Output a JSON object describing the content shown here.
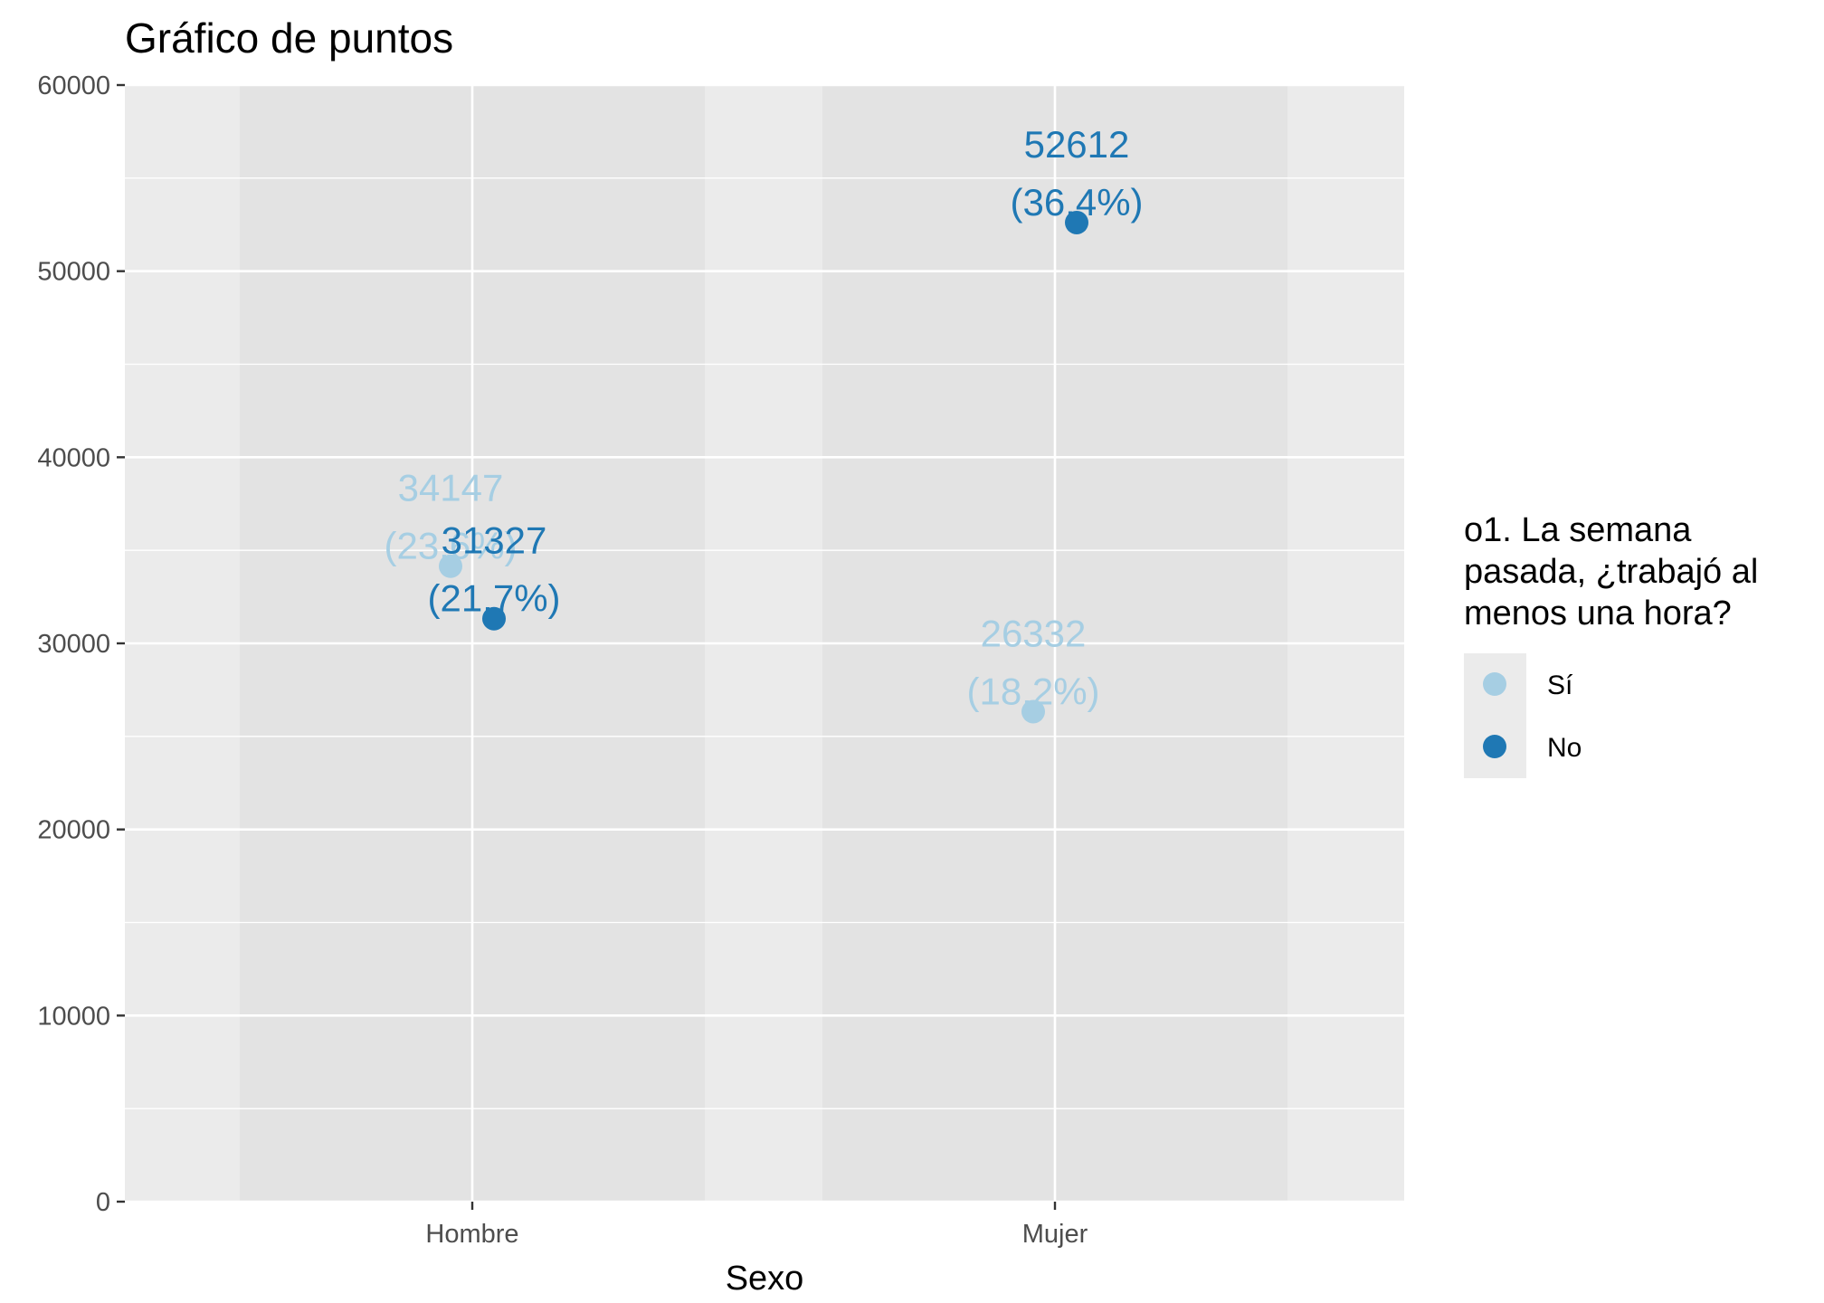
{
  "chart_data": {
    "type": "scatter",
    "title": "Gráfico de puntos",
    "xlabel": "Sexo",
    "ylabel": "",
    "categories": [
      "Hombre",
      "Mujer"
    ],
    "ylim": [
      0,
      60000
    ],
    "yticks": [
      0,
      10000,
      20000,
      30000,
      40000,
      50000,
      60000
    ],
    "grid": true,
    "legend": {
      "title_lines": [
        "o1. La semana",
        "pasada, ¿trabajó al",
        "menos una hora?"
      ],
      "position": "right"
    },
    "series": [
      {
        "name": "Sí",
        "color": "#a6cee3",
        "values": [
          34147,
          26332
        ],
        "labels": [
          [
            "34147",
            "(23.6%)"
          ],
          [
            "26332",
            "(18.2%)"
          ]
        ]
      },
      {
        "name": "No",
        "color": "#1f78b4",
        "values": [
          31327,
          52612
        ],
        "labels": [
          [
            "31327",
            "(21.7%)"
          ],
          [
            "52612",
            "(36.4%)"
          ]
        ]
      }
    ]
  },
  "colors": {
    "panel_background": "#ebebeb",
    "category_band": "#e3e3e3",
    "grid_line": "#ffffff",
    "tick_text": "#4d4d4d"
  }
}
